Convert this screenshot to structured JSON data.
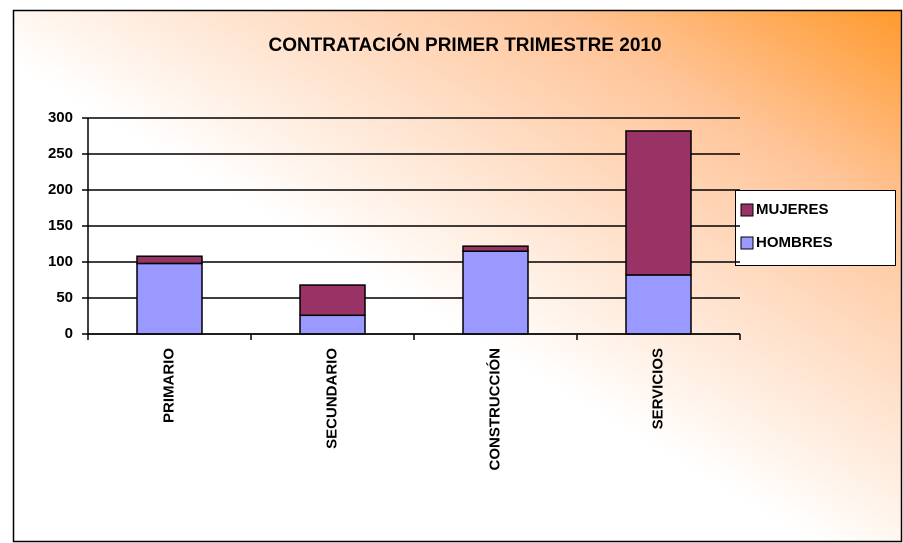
{
  "chart_data": {
    "type": "stacked_bar",
    "title": "CONTRATACIÓN PRIMER TRIMESTRE 2010",
    "categories": [
      "PRIMARIO",
      "SECUNDARIO",
      "CONSTRUCCIÓN",
      "SERVICIOS"
    ],
    "series": [
      {
        "name": "HOMBRES",
        "color": "#9999ff",
        "values": [
          98,
          26,
          115,
          82
        ]
      },
      {
        "name": "MUJERES",
        "color": "#993366",
        "values": [
          10,
          42,
          7,
          200
        ]
      }
    ],
    "ylim": [
      0,
      300
    ],
    "yticks": [
      0,
      50,
      100,
      150,
      200,
      250,
      300
    ],
    "grid": true,
    "legend": "right"
  }
}
